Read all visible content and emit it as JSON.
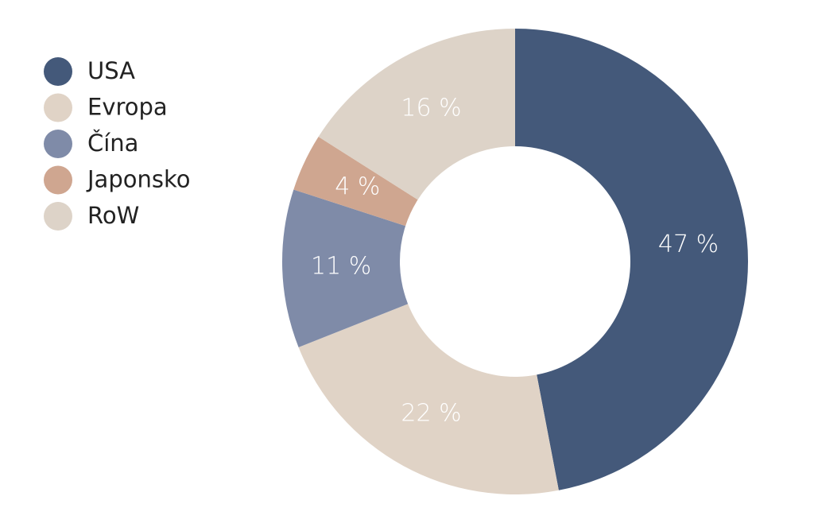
{
  "chart_data": {
    "type": "donut",
    "categories": [
      "USA",
      "Evropa",
      "Čína",
      "Japonsko",
      "RoW"
    ],
    "values": [
      47,
      22,
      11,
      4,
      16
    ],
    "value_labels": [
      "47 %",
      "22 %",
      "11 %",
      "4 %",
      "16 %"
    ],
    "colors": [
      "#44597a",
      "#e0d3c6",
      "#7f8ba8",
      "#cfa690",
      "#ddd3c8"
    ],
    "legend": "top-left"
  }
}
